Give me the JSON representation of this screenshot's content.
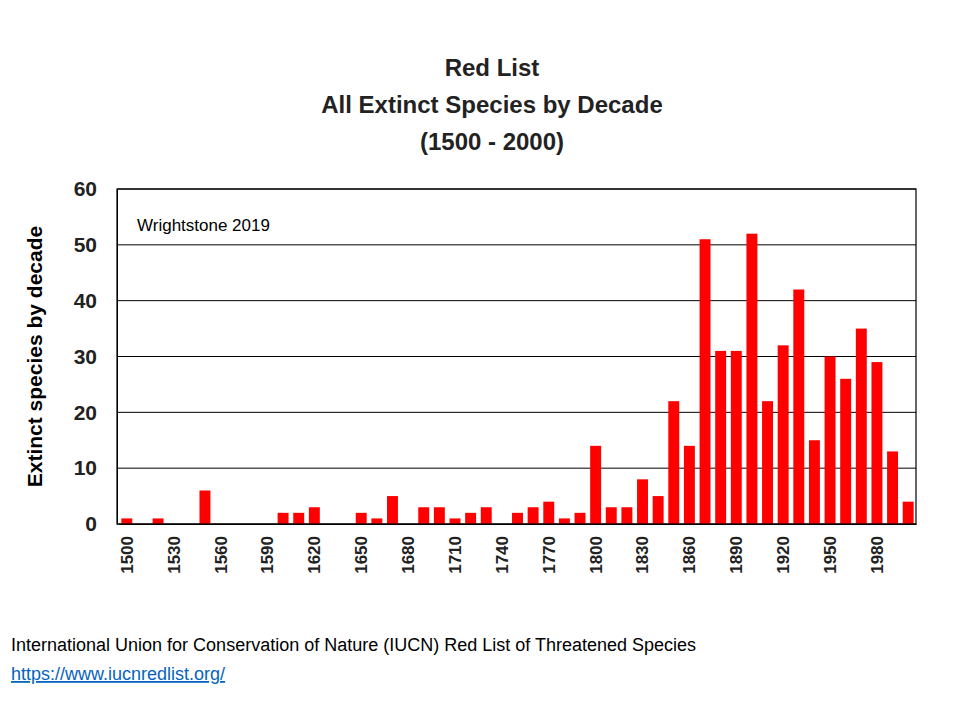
{
  "chart_data": {
    "type": "bar",
    "title": [
      "Red List",
      "All Extinct Species by Decade",
      "(1500 - 2000)"
    ],
    "y_label": "Extinct species by decade",
    "annotations": [
      "Wrightstone 2019"
    ],
    "source": "International Union for Conservation of Nature (IUCN) Red List of Threatened Species",
    "source_url": "https://www.iucnredlist.org/",
    "categories": [
      "1500",
      null,
      null,
      "1530",
      null,
      null,
      "1560",
      null,
      null,
      "1590",
      null,
      null,
      "1620",
      null,
      null,
      "1650",
      null,
      null,
      "1680",
      null,
      null,
      "1710",
      null,
      null,
      "1740",
      null,
      null,
      "1770",
      null,
      null,
      "1800",
      null,
      null,
      "1830",
      null,
      null,
      "1860",
      null,
      null,
      "1890",
      null,
      null,
      "1920",
      null,
      null,
      "1950",
      null,
      null,
      "1980",
      null,
      null
    ],
    "values": [
      1,
      0,
      1,
      0,
      0,
      6,
      0,
      0,
      0,
      0,
      2,
      2,
      3,
      0,
      0,
      2,
      1,
      5,
      0,
      3,
      3,
      1,
      2,
      3,
      0,
      2,
      3,
      4,
      1,
      2,
      14,
      3,
      3,
      8,
      5,
      22,
      14,
      51,
      31,
      31,
      52,
      22,
      32,
      42,
      15,
      30,
      26,
      35,
      29,
      13,
      4
    ],
    "color": "#ff0000",
    "ylim": [
      0,
      60
    ],
    "yticks": [
      0,
      10,
      20,
      30,
      40,
      50,
      60
    ],
    "grid": true
  }
}
